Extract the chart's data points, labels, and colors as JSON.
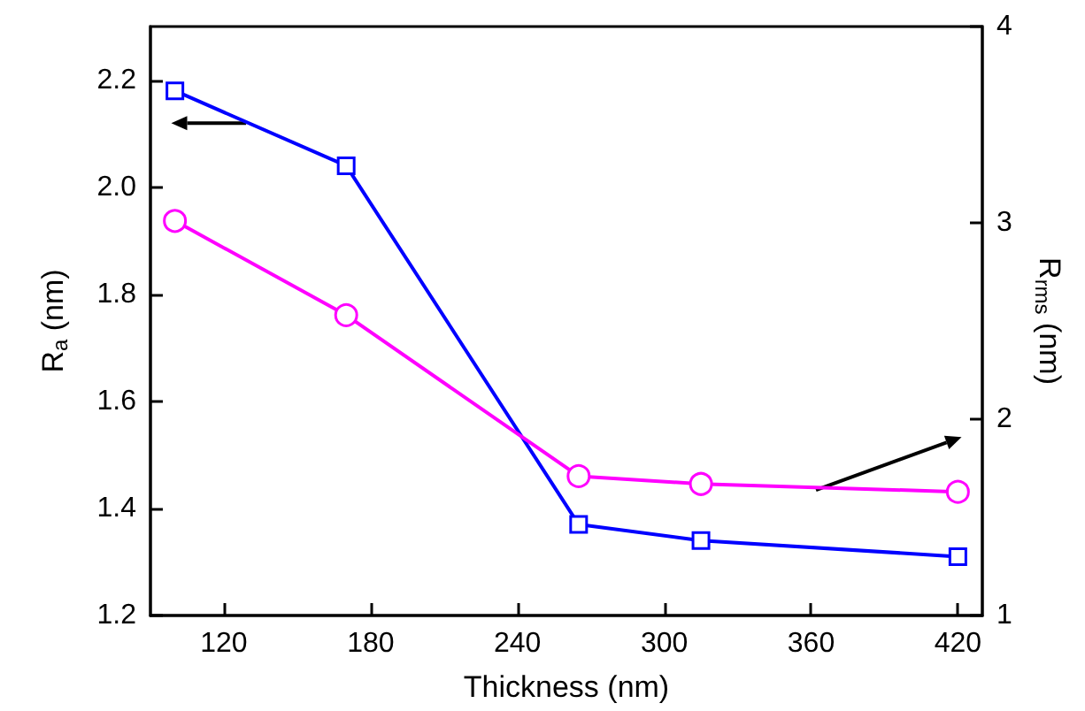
{
  "chart_data": {
    "type": "line",
    "xlabel": "Thickness (nm)",
    "ylabel": "R$_{a}$ (nm)",
    "y2label": "R$_{rms}$ (nm)",
    "xlim": [
      90,
      430
    ],
    "xticks": [
      120,
      180,
      240,
      300,
      360,
      420
    ],
    "ylim": [
      1.2,
      2.3
    ],
    "yticks": [
      1.2,
      1.4,
      1.6,
      1.8,
      {
        "value": 2,
        "label": "2.0"
      },
      2.2
    ],
    "y2lim": [
      1,
      4
    ],
    "y2ticks": [
      1,
      2,
      3,
      4
    ],
    "series": [
      {
        "color": "#0000ff",
        "marker": "square",
        "x": [
          100,
          170,
          265,
          315,
          420
        ],
        "values": [
          2.18,
          2.04,
          1.37,
          1.34,
          1.31
        ]
      },
      {
        "color": "#ff00ff",
        "marker": "circle",
        "axis": "y2",
        "x": [
          100,
          170,
          265,
          315,
          420
        ],
        "values": [
          3.01,
          2.53,
          1.71,
          1.67,
          1.63
        ]
      }
    ]
  }
}
